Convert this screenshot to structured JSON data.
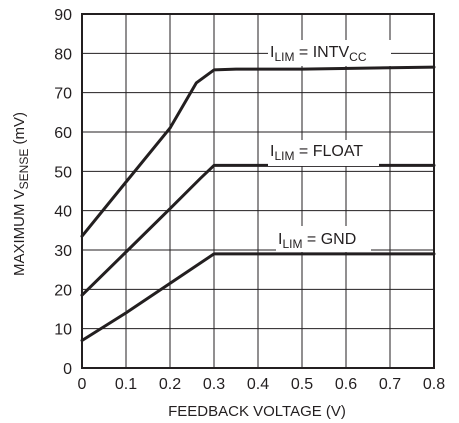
{
  "chart_data": {
    "type": "line",
    "xlabel": "FEEDBACK VOLTAGE (V)",
    "ylabel": {
      "main": "MAXIMUM V",
      "sub": "SENSE",
      "unit": " (mV)"
    },
    "xlim": [
      0,
      0.8
    ],
    "ylim": [
      0,
      90
    ],
    "x_ticks": [
      "0",
      "0.1",
      "0.2",
      "0.3",
      "0.4",
      "0.5",
      "0.6",
      "0.7",
      "0.8"
    ],
    "y_ticks": [
      "0",
      "10",
      "20",
      "30",
      "40",
      "50",
      "60",
      "70",
      "80",
      "90"
    ],
    "grid": true,
    "series": [
      {
        "label": {
          "pre": "I",
          "pre_sub": "LIM",
          "mid": " = INTV",
          "post_sub": "CC"
        },
        "points": [
          [
            0,
            33.5
          ],
          [
            0.1,
            47.3
          ],
          [
            0.2,
            61.0
          ],
          [
            0.26,
            72.5
          ],
          [
            0.3,
            75.8
          ],
          [
            0.35,
            76.0
          ],
          [
            0.5,
            76.0
          ],
          [
            0.8,
            76.5
          ]
        ]
      },
      {
        "label": {
          "pre": "I",
          "pre_sub": "LIM",
          "mid": " = FLOAT",
          "post_sub": ""
        },
        "points": [
          [
            0,
            18.5
          ],
          [
            0.1,
            29.5
          ],
          [
            0.2,
            40.5
          ],
          [
            0.27,
            48.3
          ],
          [
            0.3,
            51.5
          ],
          [
            0.35,
            51.5
          ],
          [
            0.8,
            51.5
          ]
        ]
      },
      {
        "label": {
          "pre": "I",
          "pre_sub": "LIM",
          "mid": " = GND",
          "post_sub": ""
        },
        "points": [
          [
            0,
            7.0
          ],
          [
            0.1,
            14.0
          ],
          [
            0.2,
            21.5
          ],
          [
            0.3,
            29.0
          ],
          [
            0.8,
            29.0
          ]
        ]
      }
    ],
    "line_color": "#231f20",
    "grid_color": "#231f20"
  }
}
